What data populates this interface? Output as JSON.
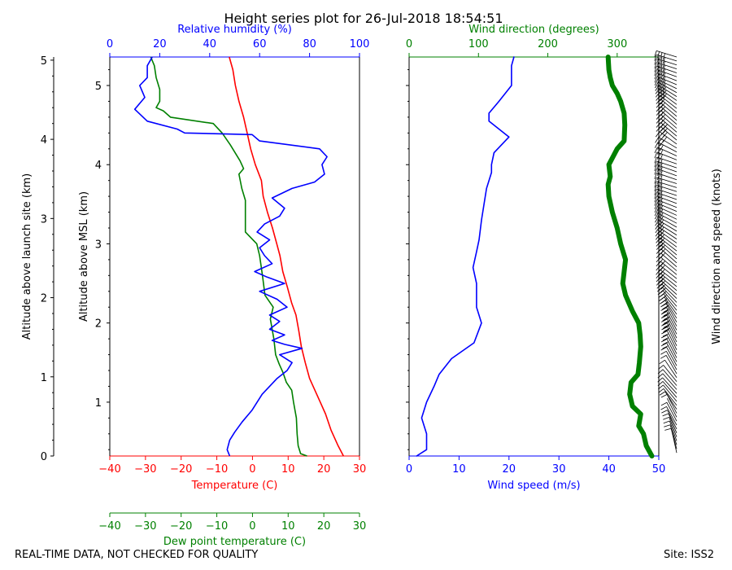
{
  "title": "Height series plot for 26-Jul-2018 18:54:51",
  "footer_left": "REAL-TIME DATA, NOT CHECKED FOR QUALITY",
  "footer_right": "Site: ISS2",
  "colors": {
    "red": "#ff0000",
    "green": "#008000",
    "blue": "#0000ff",
    "black": "#000000"
  },
  "chart_data": [
    {
      "type": "line",
      "panel": "thermodynamic",
      "title": "Height series plot for 26-Jul-2018 18:54:51",
      "ylabel_outer": "Altitude above launch site (km)",
      "ylabel_inner": "Altitude above MSL (km)",
      "ylim_msl": [
        0.32,
        5.36
      ],
      "yticks_outer": [
        {
          "v": 0,
          "label": "0"
        },
        {
          "v": 1,
          "label": "1"
        },
        {
          "v": 2,
          "label": "2"
        },
        {
          "v": 3,
          "label": "3"
        },
        {
          "v": 4,
          "label": "4"
        },
        {
          "v": 5,
          "label": "5"
        }
      ],
      "yticks_inner": [
        {
          "v": 1,
          "label": "1"
        },
        {
          "v": 2,
          "label": "2"
        },
        {
          "v": 3,
          "label": "3"
        },
        {
          "v": 4,
          "label": "4"
        },
        {
          "v": 5,
          "label": "5"
        }
      ],
      "outer_offset_km": 0.32,
      "axes": {
        "temperature": {
          "label": "Temperature (C)",
          "lim": [
            -40,
            30
          ],
          "ticks": [
            -40,
            -30,
            -20,
            -10,
            0,
            10,
            20,
            30
          ],
          "position": "bottom",
          "color": "red"
        },
        "dewpoint": {
          "label": "Dew point temperature (C)",
          "lim": [
            -40,
            30
          ],
          "ticks": [
            -40,
            -30,
            -20,
            -10,
            0,
            10,
            20,
            30
          ],
          "position": "bottom-offset",
          "color": "green"
        },
        "humidity": {
          "label": "Relative humidity (%)",
          "lim": [
            0,
            100
          ],
          "ticks": [
            0,
            20,
            40,
            60,
            80,
            100
          ],
          "position": "top",
          "color": "blue"
        }
      },
      "series": [
        {
          "name": "Temperature",
          "color": "red",
          "axis": "temperature",
          "points": [
            [
              25.5,
              0.32
            ],
            [
              24,
              0.45
            ],
            [
              22,
              0.65
            ],
            [
              20.5,
              0.85
            ],
            [
              19,
              1.0
            ],
            [
              17.5,
              1.15
            ],
            [
              16,
              1.3
            ],
            [
              14.8,
              1.5
            ],
            [
              13.7,
              1.7
            ],
            [
              13,
              1.9
            ],
            [
              12.2,
              2.1
            ],
            [
              11,
              2.25
            ],
            [
              9.8,
              2.45
            ],
            [
              8.5,
              2.65
            ],
            [
              7.7,
              2.85
            ],
            [
              6.8,
              3.0
            ],
            [
              5.6,
              3.2
            ],
            [
              4.2,
              3.4
            ],
            [
              3.0,
              3.6
            ],
            [
              2.5,
              3.8
            ],
            [
              0.8,
              4.0
            ],
            [
              -0.5,
              4.2
            ],
            [
              -1.5,
              4.4
            ],
            [
              -2.5,
              4.6
            ],
            [
              -3.8,
              4.8
            ],
            [
              -4.8,
              5.0
            ],
            [
              -5.5,
              5.2
            ],
            [
              -6.5,
              5.36
            ]
          ]
        },
        {
          "name": "Dew point",
          "color": "green",
          "axis": "dewpoint",
          "points": [
            [
              15.3,
              0.32
            ],
            [
              13.5,
              0.35
            ],
            [
              12.8,
              0.45
            ],
            [
              12.5,
              0.6
            ],
            [
              12.3,
              0.8
            ],
            [
              11.5,
              1.0
            ],
            [
              11,
              1.15
            ],
            [
              9.5,
              1.25
            ],
            [
              8.5,
              1.38
            ],
            [
              7.5,
              1.48
            ],
            [
              6.5,
              1.6
            ],
            [
              6,
              1.8
            ],
            [
              5,
              2.05
            ],
            [
              5.8,
              2.2
            ],
            [
              3.5,
              2.35
            ],
            [
              2.8,
              2.6
            ],
            [
              2,
              2.85
            ],
            [
              1.2,
              3.0
            ],
            [
              -2,
              3.15
            ],
            [
              -2,
              3.35
            ],
            [
              -2,
              3.55
            ],
            [
              -3,
              3.7
            ],
            [
              -3.8,
              3.88
            ],
            [
              -2.5,
              3.95
            ],
            [
              -3.5,
              4.05
            ],
            [
              -6.2,
              4.25
            ],
            [
              -8.5,
              4.4
            ],
            [
              -11,
              4.52
            ],
            [
              -23,
              4.6
            ],
            [
              -25,
              4.68
            ],
            [
              -27,
              4.72
            ],
            [
              -26,
              4.8
            ],
            [
              -26,
              4.95
            ],
            [
              -27,
              5.1
            ],
            [
              -27.5,
              5.25
            ],
            [
              -28.5,
              5.36
            ]
          ]
        },
        {
          "name": "Relative humidity",
          "color": "blue",
          "axis": "humidity",
          "points": [
            [
              48,
              0.32
            ],
            [
              47,
              0.4
            ],
            [
              48,
              0.52
            ],
            [
              50,
              0.62
            ],
            [
              53,
              0.75
            ],
            [
              57,
              0.9
            ],
            [
              59,
              1.0
            ],
            [
              61,
              1.1
            ],
            [
              64,
              1.2
            ],
            [
              67,
              1.3
            ],
            [
              71,
              1.4
            ],
            [
              73,
              1.5
            ],
            [
              68,
              1.6
            ],
            [
              77,
              1.68
            ],
            [
              70,
              1.73
            ],
            [
              65,
              1.78
            ],
            [
              70,
              1.85
            ],
            [
              64,
              1.92
            ],
            [
              68,
              2.02
            ],
            [
              64,
              2.1
            ],
            [
              71,
              2.2
            ],
            [
              67,
              2.3
            ],
            [
              60,
              2.4
            ],
            [
              70,
              2.5
            ],
            [
              63,
              2.58
            ],
            [
              58,
              2.65
            ],
            [
              65,
              2.75
            ],
            [
              62,
              2.85
            ],
            [
              60,
              2.95
            ],
            [
              64,
              3.05
            ],
            [
              59,
              3.15
            ],
            [
              62,
              3.25
            ],
            [
              68,
              3.35
            ],
            [
              70,
              3.45
            ],
            [
              65,
              3.58
            ],
            [
              73,
              3.7
            ],
            [
              82,
              3.78
            ],
            [
              86,
              3.88
            ],
            [
              85,
              4.0
            ],
            [
              87,
              4.1
            ],
            [
              84,
              4.2
            ],
            [
              60,
              4.3
            ],
            [
              57,
              4.38
            ],
            [
              30,
              4.4
            ],
            [
              27,
              4.45
            ],
            [
              15,
              4.55
            ],
            [
              10,
              4.7
            ],
            [
              14,
              4.85
            ],
            [
              12,
              5.0
            ],
            [
              15,
              5.1
            ],
            [
              15,
              5.25
            ],
            [
              17,
              5.36
            ]
          ]
        }
      ]
    },
    {
      "type": "line",
      "panel": "wind",
      "ylim_msl": [
        0.32,
        5.36
      ],
      "axes": {
        "wind_speed": {
          "label": "Wind speed (m/s)",
          "lim": [
            0,
            50
          ],
          "ticks": [
            0,
            10,
            20,
            30,
            40,
            50
          ],
          "position": "bottom",
          "color": "blue"
        },
        "wind_direction": {
          "label": "Wind direction (degrees)",
          "lim": [
            0,
            360
          ],
          "ticks": [
            0,
            100,
            200,
            300
          ],
          "position": "top",
          "color": "green"
        }
      },
      "barb_label": "Wind direction and speed (knots)",
      "series": [
        {
          "name": "Wind speed",
          "color": "blue",
          "axis": "wind_speed",
          "width": "thin",
          "points": [
            [
              1.5,
              0.32
            ],
            [
              3.5,
              0.4
            ],
            [
              3.5,
              0.6
            ],
            [
              2.5,
              0.8
            ],
            [
              3.5,
              1.0
            ],
            [
              5,
              1.2
            ],
            [
              6,
              1.35
            ],
            [
              8.5,
              1.55
            ],
            [
              13,
              1.75
            ],
            [
              14.5,
              2.0
            ],
            [
              13.5,
              2.2
            ],
            [
              13.5,
              2.5
            ],
            [
              12.8,
              2.7
            ],
            [
              13.5,
              2.9
            ],
            [
              14,
              3.05
            ],
            [
              14.5,
              3.3
            ],
            [
              15,
              3.5
            ],
            [
              15.5,
              3.7
            ],
            [
              16.5,
              3.9
            ],
            [
              16.5,
              4.0
            ],
            [
              17,
              4.15
            ],
            [
              20,
              4.35
            ],
            [
              18,
              4.45
            ],
            [
              16,
              4.55
            ],
            [
              16,
              4.65
            ],
            [
              18,
              4.8
            ],
            [
              20.5,
              5.0
            ],
            [
              20.5,
              5.25
            ],
            [
              21,
              5.36
            ]
          ]
        },
        {
          "name": "Wind direction",
          "color": "green",
          "axis": "wind_direction",
          "width": "thick",
          "points": [
            [
              350,
              0.32
            ],
            [
              342,
              0.45
            ],
            [
              338,
              0.6
            ],
            [
              331,
              0.7
            ],
            [
              334,
              0.85
            ],
            [
              322,
              0.95
            ],
            [
              318,
              1.1
            ],
            [
              320,
              1.25
            ],
            [
              330,
              1.35
            ],
            [
              332,
              1.5
            ],
            [
              334,
              1.7
            ],
            [
              333,
              1.85
            ],
            [
              331,
              2.0
            ],
            [
              322,
              2.15
            ],
            [
              312,
              2.35
            ],
            [
              308,
              2.5
            ],
            [
              310,
              2.65
            ],
            [
              312,
              2.8
            ],
            [
              305,
              3.0
            ],
            [
              300,
              3.2
            ],
            [
              293,
              3.4
            ],
            [
              288,
              3.6
            ],
            [
              287,
              3.75
            ],
            [
              290,
              3.85
            ],
            [
              288,
              4.0
            ],
            [
              294,
              4.1
            ],
            [
              300,
              4.2
            ],
            [
              310,
              4.3
            ],
            [
              311,
              4.5
            ],
            [
              310,
              4.65
            ],
            [
              305,
              4.8
            ],
            [
              300,
              4.9
            ],
            [
              293,
              5.0
            ],
            [
              290,
              5.1
            ],
            [
              288,
              5.2
            ],
            [
              287,
              5.36
            ]
          ]
        }
      ]
    }
  ]
}
